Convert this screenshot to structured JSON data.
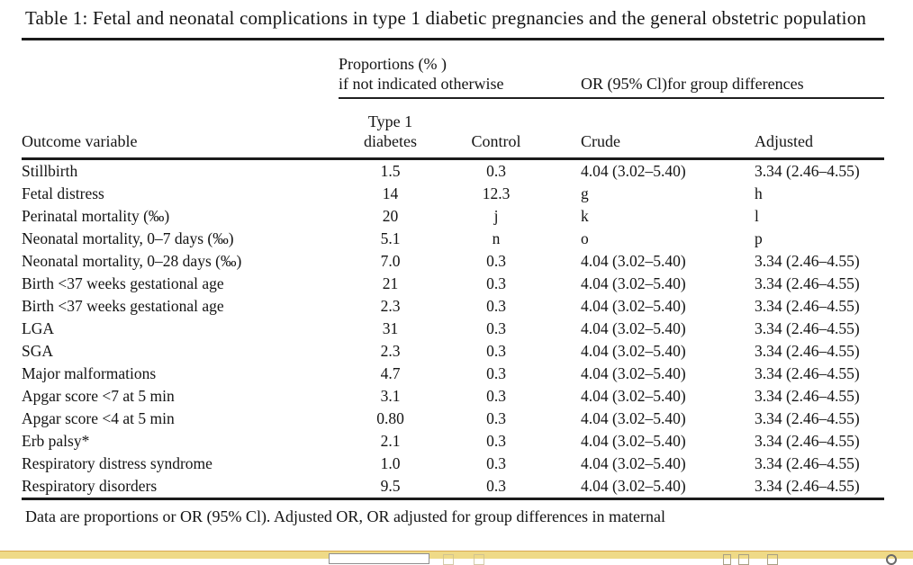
{
  "caption": "Table 1: Fetal and neonatal complications in type 1 diabetic pregnancies and the general obstetric population",
  "table": {
    "group_headers": {
      "proportions_line1": "Proportions (% )",
      "proportions_line2": "if not indicated otherwise",
      "or_header": "OR (95% Cl)for group differences"
    },
    "columns": {
      "outcome": "Outcome variable",
      "type1_line1": "Type 1",
      "type1_line2": "diabetes",
      "control": "Control",
      "crude": "Crude",
      "adjusted": "Adjusted"
    },
    "rows": [
      {
        "outcome": "Stillbirth",
        "type1": "1.5",
        "control": "0.3",
        "crude": "4.04 (3.02–5.40)",
        "adjusted": "3.34 (2.46–4.55)"
      },
      {
        "outcome": "Fetal distress",
        "type1": "14",
        "control": "12.3",
        "crude": "g",
        "adjusted": "h"
      },
      {
        "outcome": "Perinatal mortality (‰)",
        "type1": "20",
        "control": "j",
        "crude": "k",
        "adjusted": "l"
      },
      {
        "outcome": "Neonatal mortality, 0–7 days (‰)",
        "type1": "5.1",
        "control": "n",
        "crude": "o",
        "adjusted": "p"
      },
      {
        "outcome": "Neonatal mortality, 0–28 days (‰)",
        "type1": "7.0",
        "control": "0.3",
        "crude": "4.04 (3.02–5.40)",
        "adjusted": "3.34 (2.46–4.55)"
      },
      {
        "outcome": "Birth <37 weeks gestational age",
        "type1": "21",
        "control": "0.3",
        "crude": "4.04 (3.02–5.40)",
        "adjusted": "3.34 (2.46–4.55)"
      },
      {
        "outcome": "Birth <37 weeks gestational age",
        "type1": "2.3",
        "control": "0.3",
        "crude": "4.04 (3.02–5.40)",
        "adjusted": "3.34 (2.46–4.55)"
      },
      {
        "outcome": "LGA",
        "type1": "31",
        "control": "0.3",
        "crude": "4.04 (3.02–5.40)",
        "adjusted": "3.34 (2.46–4.55)"
      },
      {
        "outcome": "SGA",
        "type1": "2.3",
        "control": "0.3",
        "crude": "4.04 (3.02–5.40)",
        "adjusted": "3.34 (2.46–4.55)"
      },
      {
        "outcome": "Major malformations",
        "type1": "4.7",
        "control": "0.3",
        "crude": "4.04 (3.02–5.40)",
        "adjusted": "3.34 (2.46–4.55)"
      },
      {
        "outcome": "Apgar score <7 at 5 min",
        "type1": "3.1",
        "control": "0.3",
        "crude": "4.04 (3.02–5.40)",
        "adjusted": "3.34 (2.46–4.55)"
      },
      {
        "outcome": "Apgar score <4 at 5 min",
        "type1": "0.80",
        "control": "0.3",
        "crude": "4.04 (3.02–5.40)",
        "adjusted": "3.34 (2.46–4.55)"
      },
      {
        "outcome": "Erb palsy*",
        "type1": "2.1",
        "control": "0.3",
        "crude": "4.04 (3.02–5.40)",
        "adjusted": "3.34 (2.46–4.55)"
      },
      {
        "outcome": "Respiratory distress syndrome",
        "type1": "1.0",
        "control": "0.3",
        "crude": "4.04 (3.02–5.40)",
        "adjusted": "3.34 (2.46–4.55)"
      },
      {
        "outcome": "Respiratory disorders",
        "type1": "9.5",
        "control": "0.3",
        "crude": "4.04 (3.02–5.40)",
        "adjusted": "3.34 (2.46–4.55)"
      }
    ],
    "footnote": "Data are proportions or OR (95% Cl). Adjusted OR, OR adjusted for group differences in maternal"
  },
  "find_bar": {
    "input_value": "",
    "bar_color": "#efda87",
    "border_color": "#d9a850"
  }
}
